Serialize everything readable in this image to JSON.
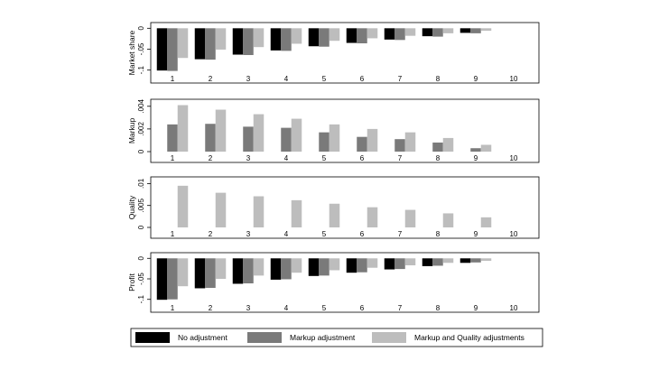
{
  "chart_data": [
    {
      "type": "bar",
      "ylabel": "Market share",
      "categories": [
        "1",
        "2",
        "3",
        "4",
        "5",
        "6",
        "7",
        "8",
        "9",
        "10"
      ],
      "yticks": [
        {
          "v": 0,
          "label": "0"
        },
        {
          "v": -0.05,
          "label": "-.05"
        },
        {
          "v": -0.1,
          "label": "-.1"
        }
      ],
      "ylim": [
        -0.105,
        0.005
      ],
      "series": [
        {
          "name": "No adjustment",
          "values": [
            -0.101,
            -0.074,
            -0.063,
            -0.053,
            -0.043,
            -0.035,
            -0.027,
            -0.019,
            -0.011,
            0
          ]
        },
        {
          "name": "Markup adjustment",
          "values": [
            -0.102,
            -0.075,
            -0.064,
            -0.054,
            -0.044,
            -0.036,
            -0.028,
            -0.02,
            -0.012,
            0
          ]
        },
        {
          "name": "Markup and Quality adjustments",
          "values": [
            -0.071,
            -0.051,
            -0.045,
            -0.037,
            -0.03,
            -0.024,
            -0.018,
            -0.012,
            -0.006,
            0
          ]
        }
      ]
    },
    {
      "type": "bar",
      "ylabel": "Markup",
      "categories": [
        "1",
        "2",
        "3",
        "4",
        "5",
        "6",
        "7",
        "8",
        "9",
        "10"
      ],
      "yticks": [
        {
          "v": 0,
          "label": "0"
        },
        {
          "v": 0.002,
          "label": ".002"
        },
        {
          "v": 0.004,
          "label": ".004"
        }
      ],
      "ylim": [
        0,
        0.0043
      ],
      "series": [
        {
          "name": "No adjustment",
          "values": [
            0,
            0,
            0,
            0,
            0,
            0,
            0,
            0,
            0,
            0
          ]
        },
        {
          "name": "Markup adjustment",
          "values": [
            0.0024,
            0.00245,
            0.0022,
            0.0021,
            0.0017,
            0.0013,
            0.0011,
            0.0008,
            0.0003,
            0
          ]
        },
        {
          "name": "Markup and Quality adjustments",
          "values": [
            0.0041,
            0.0037,
            0.0033,
            0.0029,
            0.0024,
            0.002,
            0.0017,
            0.0012,
            0.0006,
            0
          ]
        }
      ]
    },
    {
      "type": "bar",
      "ylabel": "Quality",
      "categories": [
        "1",
        "2",
        "3",
        "4",
        "5",
        "6",
        "7",
        "8",
        "9",
        "10"
      ],
      "yticks": [
        {
          "v": 0,
          "label": "0"
        },
        {
          "v": 0.005,
          "label": ".005"
        },
        {
          "v": 0.01,
          "label": ".01"
        }
      ],
      "ylim": [
        0,
        0.0107
      ],
      "series": [
        {
          "name": "No adjustment",
          "values": [
            0,
            0,
            0,
            0,
            0,
            0,
            0,
            0,
            0,
            0
          ]
        },
        {
          "name": "Markup adjustment",
          "values": [
            0,
            0,
            0,
            0,
            0,
            0,
            0,
            0,
            0,
            0
          ]
        },
        {
          "name": "Markup and Quality adjustments",
          "values": [
            0.0095,
            0.0079,
            0.0071,
            0.0062,
            0.0054,
            0.0046,
            0.004,
            0.0032,
            0.0023,
            0
          ]
        }
      ]
    },
    {
      "type": "bar",
      "ylabel": "Profit",
      "categories": [
        "1",
        "2",
        "3",
        "4",
        "5",
        "6",
        "7",
        "8",
        "9",
        "10"
      ],
      "yticks": [
        {
          "v": 0,
          "label": "0"
        },
        {
          "v": -0.05,
          "label": "-.05"
        },
        {
          "v": -0.1,
          "label": "-.1"
        }
      ],
      "ylim": [
        -0.105,
        0.005
      ],
      "series": [
        {
          "name": "No adjustment",
          "values": [
            -0.101,
            -0.073,
            -0.062,
            -0.052,
            -0.043,
            -0.035,
            -0.027,
            -0.019,
            -0.011,
            0
          ]
        },
        {
          "name": "Markup adjustment",
          "values": [
            -0.1,
            -0.072,
            -0.061,
            -0.051,
            -0.042,
            -0.034,
            -0.026,
            -0.018,
            -0.01,
            0
          ]
        },
        {
          "name": "Markup and Quality adjustments",
          "values": [
            -0.068,
            -0.05,
            -0.042,
            -0.035,
            -0.029,
            -0.023,
            -0.017,
            -0.011,
            -0.006,
            0
          ]
        }
      ]
    }
  ],
  "legend": {
    "items": [
      {
        "label": "No adjustment",
        "color": "#000000"
      },
      {
        "label": "Markup adjustment",
        "color": "#7a7a7a"
      },
      {
        "label": "Markup and Quality adjustments",
        "color": "#bdbdbd"
      }
    ]
  }
}
